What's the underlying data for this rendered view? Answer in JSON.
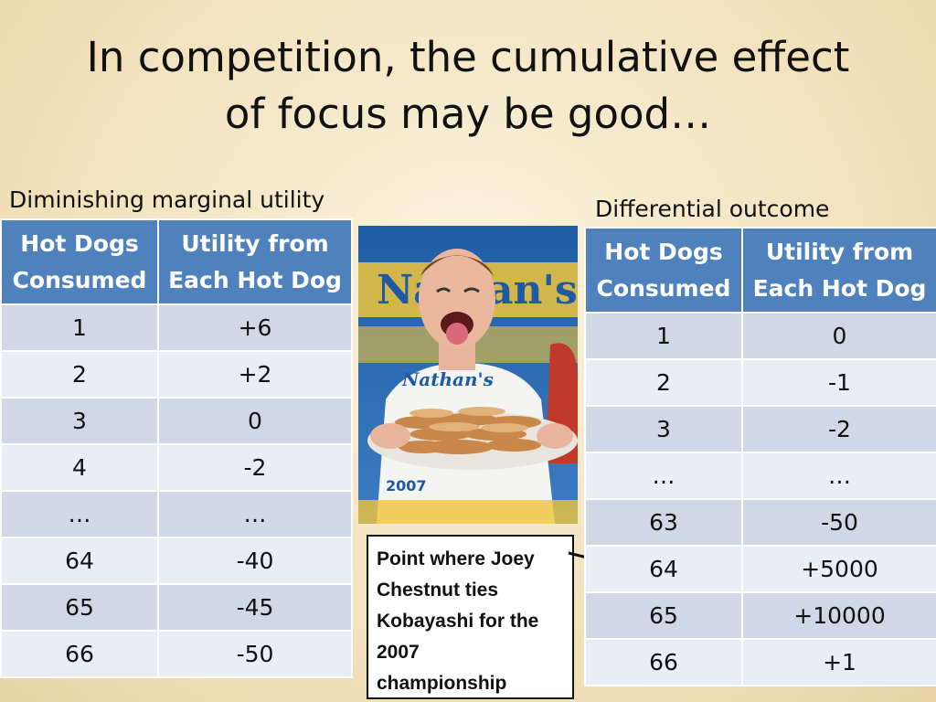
{
  "title": {
    "line1": "In competition, the cumulative effect",
    "line2": "of focus may be good…"
  },
  "left_table": {
    "caption": "Diminishing marginal utility",
    "headers": [
      {
        "line1": "Hot Dogs",
        "line2": "Consumed"
      },
      {
        "line1": "Utility from",
        "line2": "Each Hot Dog"
      }
    ],
    "rows": [
      [
        "1",
        "+6"
      ],
      [
        "2",
        "+2"
      ],
      [
        "3",
        "0"
      ],
      [
        "4",
        "-2"
      ],
      [
        "…",
        "…"
      ],
      [
        "64",
        "-40"
      ],
      [
        "65",
        "-45"
      ],
      [
        "66",
        "-50"
      ]
    ]
  },
  "right_table": {
    "caption": "Differential outcome",
    "headers": [
      {
        "line1": "Hot Dogs",
        "line2": "Consumed"
      },
      {
        "line1": "Utility from",
        "line2": "Each Hot Dog"
      }
    ],
    "rows": [
      [
        "1",
        "0"
      ],
      [
        "2",
        "-1"
      ],
      [
        "3",
        "-2"
      ],
      [
        "…",
        "…"
      ],
      [
        "63",
        "-50"
      ],
      [
        "64",
        "+5000"
      ],
      [
        "65",
        "+10000"
      ],
      [
        "66",
        "+1"
      ]
    ]
  },
  "photo": {
    "banner_text": "Nathan's",
    "shirt_text": "Nathan's",
    "year_text": "2007"
  },
  "callout": {
    "lines": [
      "Point where Joey",
      "Chestnut ties",
      "Kobayashi for the",
      "2007",
      "championship"
    ]
  },
  "colors": {
    "header_blue": "#4f81bd",
    "row_light": "#e9edf4",
    "row_dark": "#d0d8e8"
  }
}
